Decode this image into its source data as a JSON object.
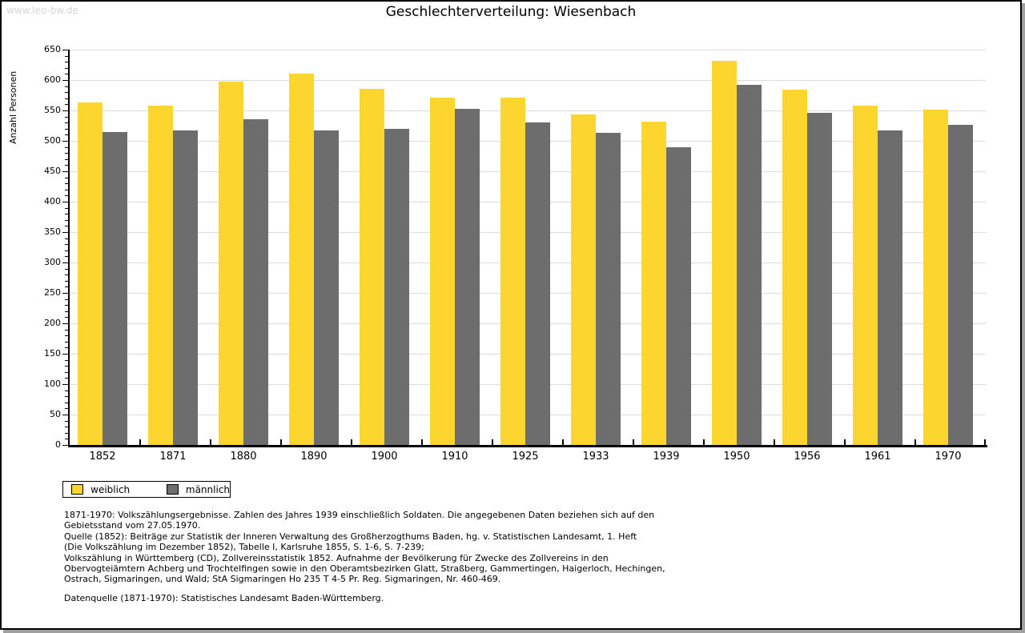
{
  "watermark": "www.leo-bw.de",
  "title": "Geschlechterverteilung: Wiesenbach",
  "chart_data": {
    "type": "bar",
    "title": "Geschlechterverteilung: Wiesenbach",
    "xlabel": "",
    "ylabel": "Anzahl Personen",
    "ylim": [
      0,
      650
    ],
    "ytick_step": 50,
    "ytick_minor_step": 10,
    "grid": true,
    "legend_position": "bottom-left",
    "categories": [
      "1852",
      "1871",
      "1880",
      "1890",
      "1900",
      "1910",
      "1925",
      "1933",
      "1939",
      "1950",
      "1956",
      "1961",
      "1970"
    ],
    "series": [
      {
        "name": "weiblich",
        "color": "#fcd62f",
        "values": [
          563,
          558,
          597,
          610,
          586,
          571,
          571,
          543,
          531,
          632,
          584,
          558,
          551
        ]
      },
      {
        "name": "männlich",
        "color": "#6d6d6d",
        "values": [
          515,
          517,
          536,
          517,
          520,
          552,
          530,
          513,
          489,
          592,
          546,
          517,
          526
        ]
      }
    ]
  },
  "legend": {
    "items": [
      {
        "label": "weiblich",
        "color": "#fcd62f"
      },
      {
        "label": "männlich",
        "color": "#6d6d6d"
      }
    ]
  },
  "footnotes": {
    "lines": [
      "1871-1970: Volkszählungsergebnisse. Zahlen des Jahres 1939 einschließlich Soldaten. Die angegebenen Daten beziehen sich auf den",
      "Gebietsstand vom 27.05.1970.",
      "Quelle (1852): Beiträge zur Statistik der Inneren Verwaltung des Großherzogthums Baden, hg. v. Statistischen Landesamt, 1. Heft",
      "(Die Volkszählung im Dezember 1852), Tabelle I, Karlsruhe 1855, S. 1-6, S. 7-239;",
      "Volkszählung in Württemberg (CD), Zollvereinsstatistik 1852. Aufnahme der Bevölkerung für Zwecke des Zollvereins in den",
      "Obervogteiämtern Achberg und Trochtelfingen sowie in den Oberamtsbezirken Glatt, Straßberg, Gammertingen, Haigerloch, Hechingen,",
      "Ostrach, Sigmaringen, und Wald; StA Sigmaringen Ho 235 T 4-5 Pr. Reg. Sigmaringen, Nr. 460-469."
    ],
    "datasource": "Datenquelle (1871-1970): Statistisches Landesamt Baden-Württemberg."
  },
  "colors": {
    "bar_weiblich": "#fcd62f",
    "bar_maennlich": "#6d6d6d",
    "gridline": "#dcdcdc",
    "axis": "#000000",
    "watermark": "#d4d4d4",
    "frame_shadow": "#a0a0a0",
    "background": "#ffffff"
  }
}
